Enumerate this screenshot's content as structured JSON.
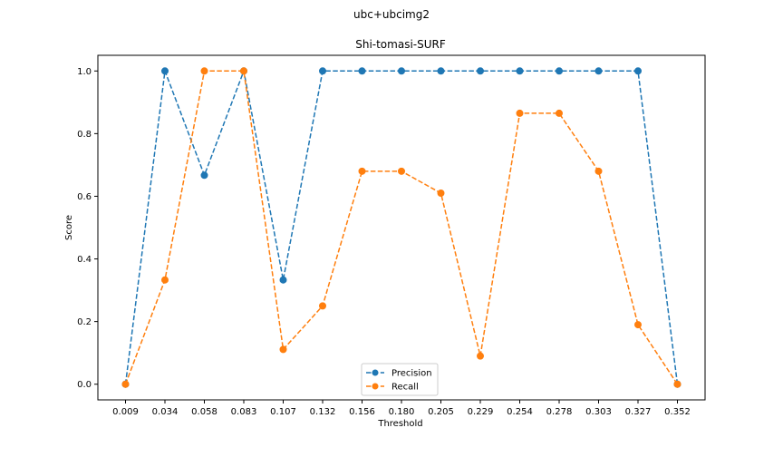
{
  "figure": {
    "suptitle": "ubc+ubcimg2"
  },
  "chart_data": {
    "type": "line",
    "title": "Shi-tomasi-SURF",
    "xlabel": "Threshold",
    "ylabel": "Score",
    "categories": [
      "0.009",
      "0.034",
      "0.058",
      "0.083",
      "0.107",
      "0.132",
      "0.156",
      "0.180",
      "0.205",
      "0.229",
      "0.254",
      "0.278",
      "0.303",
      "0.327",
      "0.352"
    ],
    "yticks": [
      "0.0",
      "0.2",
      "0.4",
      "0.6",
      "0.8",
      "1.0"
    ],
    "ylim": [
      -0.05,
      1.05
    ],
    "grid": false,
    "legend_position": "lower center",
    "series": [
      {
        "name": "Precision",
        "color": "#1f77b4",
        "marker": "circle",
        "linestyle": "dashed",
        "values": [
          0.0,
          1.0,
          0.667,
          1.0,
          0.333,
          1.0,
          1.0,
          1.0,
          1.0,
          1.0,
          1.0,
          1.0,
          1.0,
          1.0,
          0.0
        ]
      },
      {
        "name": "Recall",
        "color": "#ff7f0e",
        "marker": "circle",
        "linestyle": "dashed",
        "values": [
          0.0,
          0.333,
          1.0,
          1.0,
          0.111,
          0.25,
          0.68,
          0.68,
          0.61,
          0.09,
          0.865,
          0.865,
          0.68,
          0.19,
          0.0
        ]
      }
    ]
  }
}
